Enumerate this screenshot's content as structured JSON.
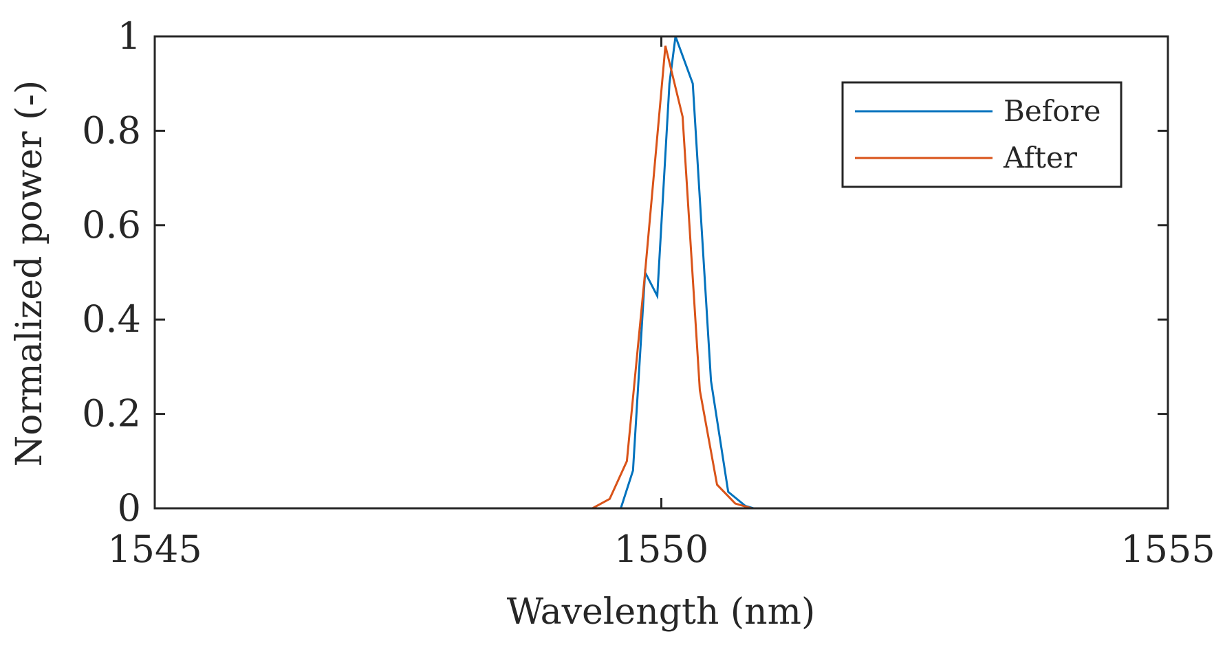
{
  "chart_data": {
    "type": "line",
    "title": "",
    "xlabel": "Wavelength (nm)",
    "ylabel": "Normalized power (-)",
    "xlim": [
      1545,
      1555
    ],
    "ylim": [
      0,
      1
    ],
    "xticks": [
      1545,
      1550,
      1555
    ],
    "xtick_labels": [
      "1545",
      "1550",
      "1555"
    ],
    "yticks": [
      0,
      0.2,
      0.4,
      0.6,
      0.8,
      1
    ],
    "ytick_labels": [
      "0",
      "0.2",
      "0.4",
      "0.6",
      "0.8",
      "1"
    ],
    "grid": false,
    "box": true,
    "legend_position": "top-right",
    "series": [
      {
        "name": "Before",
        "color": "#0072BD",
        "x": [
          1545,
          1549.6,
          1549.72,
          1549.84,
          1549.96,
          1550.08,
          1550.14,
          1550.31,
          1550.49,
          1550.66,
          1550.83,
          1550.91,
          1551.0,
          1555
        ],
        "y": [
          0,
          0,
          0.08,
          0.5,
          0.45,
          0.9,
          1.0,
          0.9,
          0.27,
          0.035,
          0.005,
          0,
          0,
          0
        ]
      },
      {
        "name": "After",
        "color": "#D95319",
        "x": [
          1545,
          1549.32,
          1549.49,
          1549.66,
          1549.84,
          1550.04,
          1550.21,
          1550.38,
          1550.55,
          1550.73,
          1550.89,
          1555
        ],
        "y": [
          0,
          0,
          0.02,
          0.1,
          0.5,
          0.98,
          0.83,
          0.25,
          0.05,
          0.01,
          0,
          0
        ]
      }
    ]
  }
}
